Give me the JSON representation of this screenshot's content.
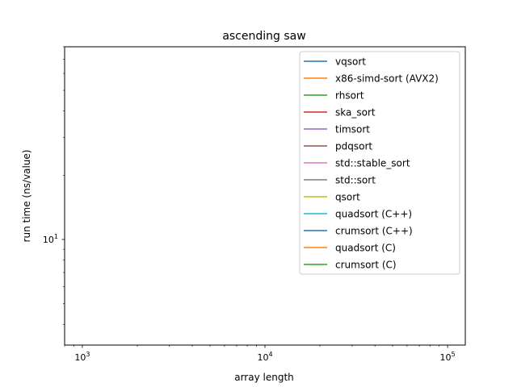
{
  "chart_data": {
    "type": "line",
    "title": "ascending saw",
    "xlabel": "array length",
    "ylabel": "run time (ns/value)",
    "xscale": "log",
    "yscale": "log",
    "xlim": [
      800,
      125000
    ],
    "ylim": [
      3.2,
      80
    ],
    "x_ticks": [
      {
        "value": 1000,
        "base": "10",
        "exp": "3"
      },
      {
        "value": 10000,
        "base": "10",
        "exp": "4"
      },
      {
        "value": 100000,
        "base": "10",
        "exp": "5"
      }
    ],
    "y_ticks": [
      {
        "value": 10,
        "base": "10",
        "exp": "1"
      }
    ],
    "grid": false,
    "legend_position": "top-right",
    "series": [
      {
        "name": "vqsort",
        "color": "#1f77b4",
        "values": []
      },
      {
        "name": "x86-simd-sort (AVX2)",
        "color": "#ff7f0e",
        "values": []
      },
      {
        "name": "rhsort",
        "color": "#2ca02c",
        "values": []
      },
      {
        "name": "ska_sort",
        "color": "#d62728",
        "values": []
      },
      {
        "name": "timsort",
        "color": "#9467bd",
        "values": []
      },
      {
        "name": "pdqsort",
        "color": "#8c564b",
        "values": []
      },
      {
        "name": "std::stable_sort",
        "color": "#e377c2",
        "values": []
      },
      {
        "name": "std::sort",
        "color": "#7f7f7f",
        "values": []
      },
      {
        "name": "qsort",
        "color": "#bcbd22",
        "values": []
      },
      {
        "name": "quadsort (C++)",
        "color": "#17becf",
        "values": []
      },
      {
        "name": "crumsort (C++)",
        "color": "#1f77b4",
        "values": []
      },
      {
        "name": "quadsort (C)",
        "color": "#ff7f0e",
        "values": []
      },
      {
        "name": "crumsort (C)",
        "color": "#2ca02c",
        "values": []
      }
    ]
  }
}
